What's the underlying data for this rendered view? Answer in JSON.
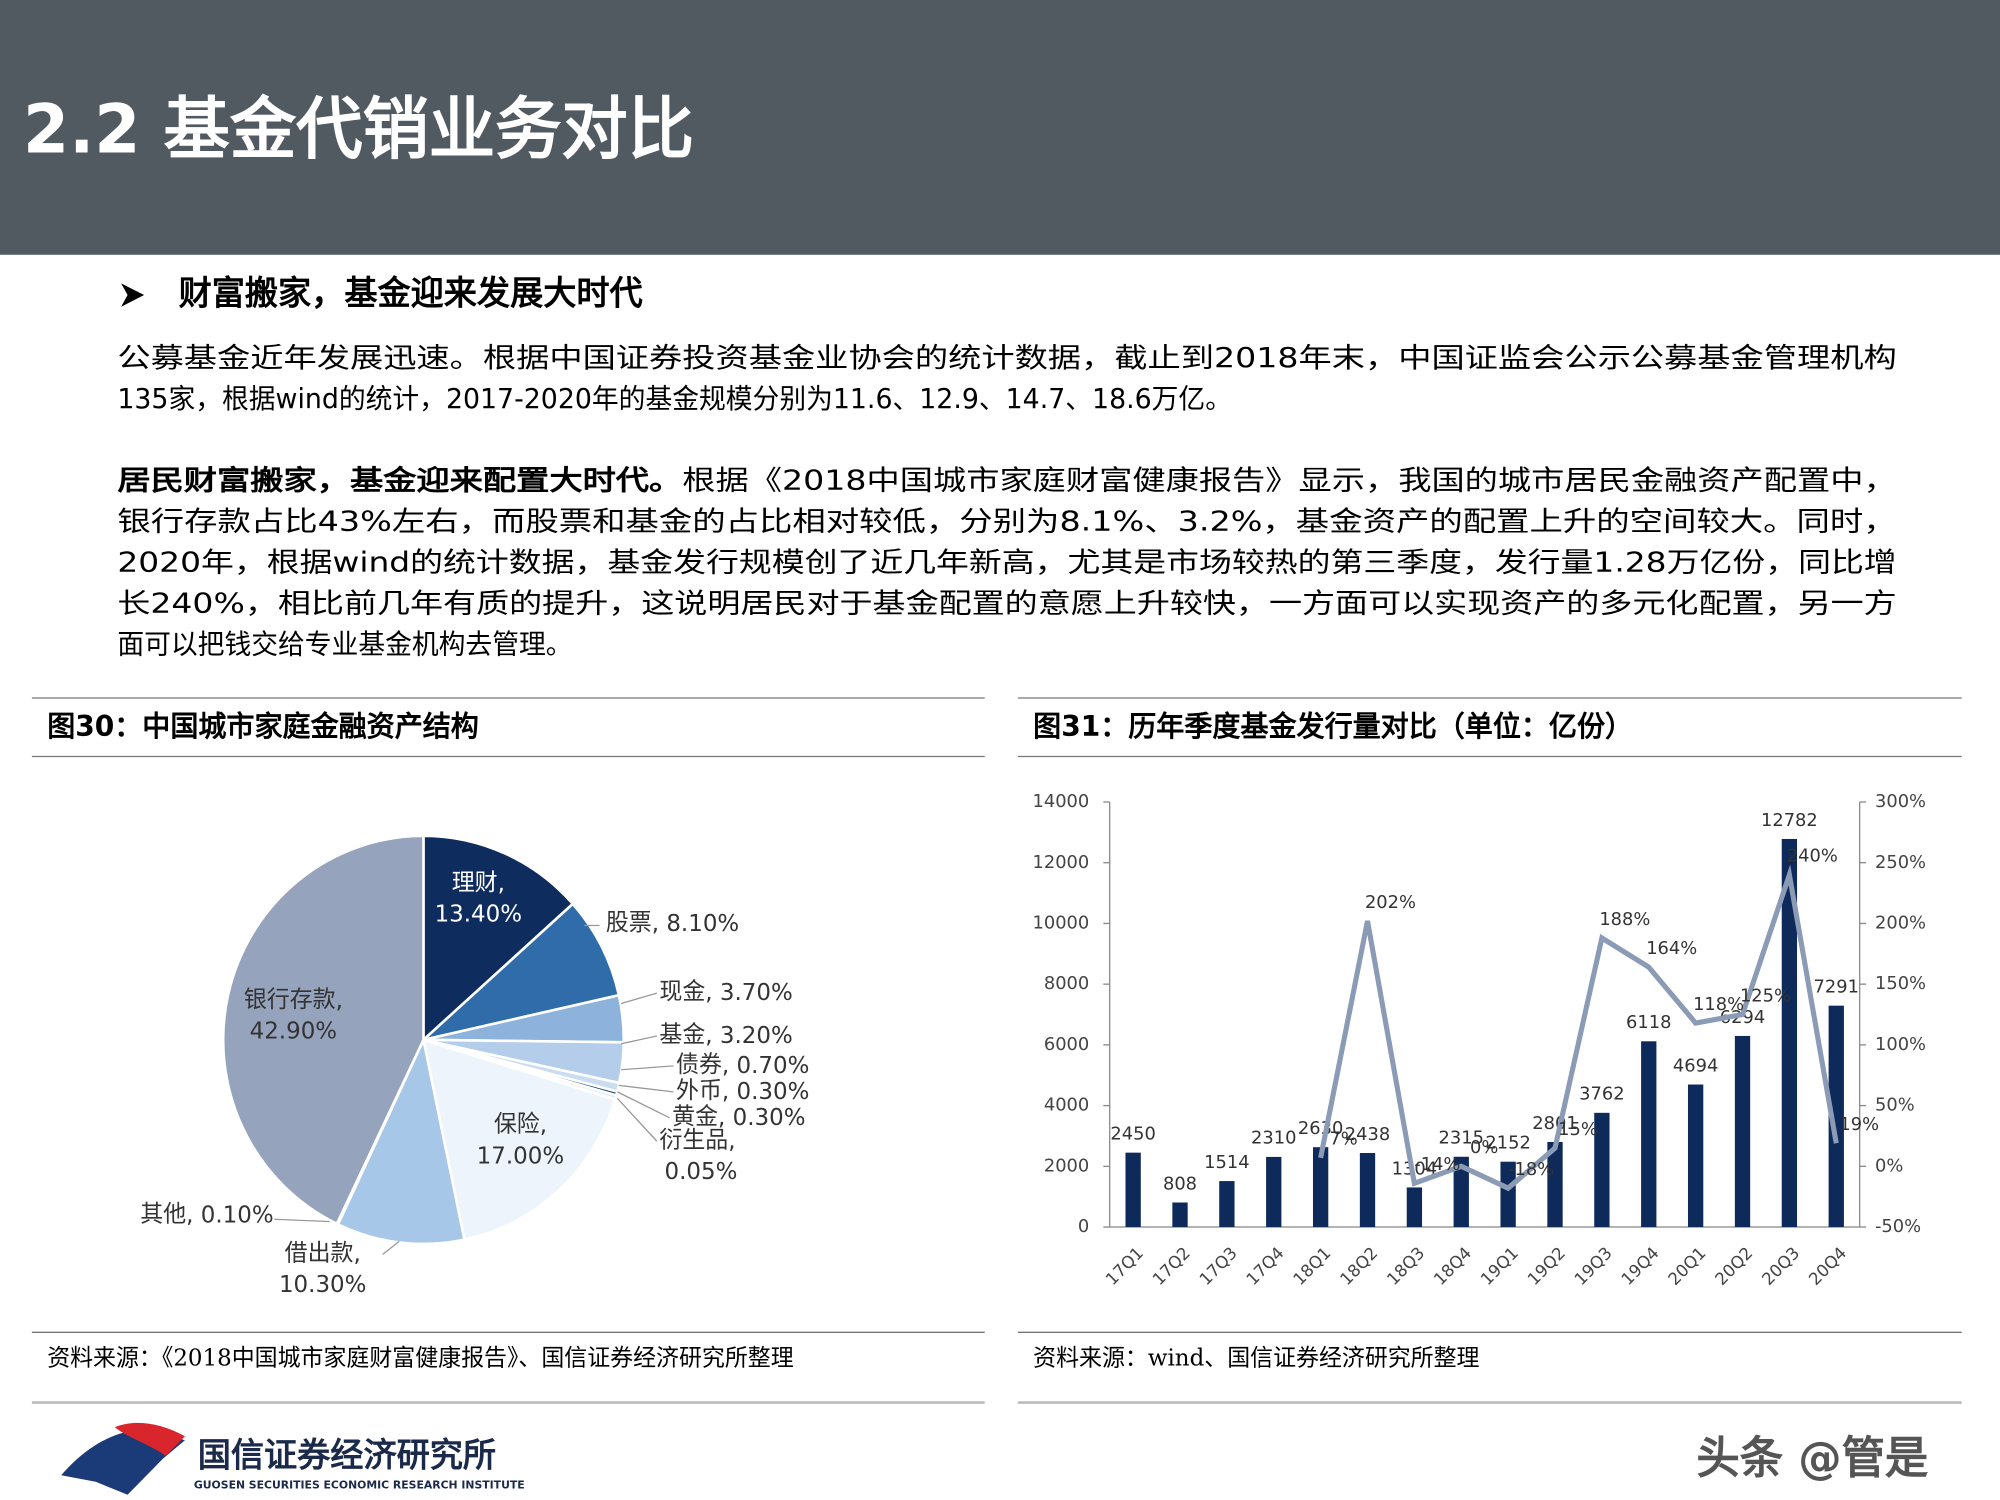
{
  "header": {
    "title": "2.2 基金代销业务对比"
  },
  "section": {
    "heading": "财富搬家，基金迎来发展大时代"
  },
  "paragraphs": [
    {
      "lines": [
        "公募基金近年发展迅速。根据中国证券投资基金业协会的统计数据，截止到2018年末，中国证监会公示公募基金管理机构",
        "135家，根据wind的统计，2017-2020年的基金规模分别为11.6、12.9、14.7、18.6万亿。"
      ]
    },
    {
      "lead": "居民财富搬家，基金迎来配置大时代。",
      "lines": [
        "根据《2018中国城市家庭财富健康报告》显示，我国的城市居民金融资产配置中，",
        "银行存款占比43%左右，而股票和基金的占比相对较低，分别为8.1%、3.2%，基金资产的配置上升的空间较大。同时，",
        "2020年，根据wind的统计数据，基金发行规模创了近几年新高，尤其是市场较热的第三季度，发行量1.28万亿份，同比增",
        "长240%，相比前几年有质的提升，这说明居民对于基金配置的意愿上升较快，一方面可以实现资产的多元化配置，另一方",
        "面可以把钱交给专业基金机构去管理。"
      ]
    }
  ],
  "chart_data": [
    {
      "type": "pie",
      "title": "图30：中国城市家庭金融资产结构",
      "source": "资料来源：《2018中国城市家庭财富健康报告》、国信证券经济研究所整理",
      "categories": [
        "理财",
        "股票",
        "现金",
        "基金",
        "债券",
        "外币",
        "黄金",
        "衍生品",
        "保险",
        "借出款",
        "其他",
        "银行存款"
      ],
      "values": [
        13.4,
        8.1,
        3.7,
        3.2,
        0.7,
        0.3,
        0.3,
        0.05,
        17.0,
        10.3,
        0.1,
        42.9
      ],
      "value_labels": [
        "13.40%",
        "8.10%",
        "3.70%",
        "3.20%",
        "0.70%",
        "0.30%",
        "0.30%",
        "0.05%",
        "17.00%",
        "10.30%",
        "0.10%",
        "42.90%"
      ],
      "label_separator": ",",
      "colors": [
        "#0e2d5e",
        "#2f6ca9",
        "#8db3dd",
        "#b3cdea",
        "#c9dcf0",
        "#1d4a80",
        "#dbe7f5",
        "#e6eef8",
        "#eef4fb",
        "#a7c7e8",
        "#c8d2e0",
        "#95a3bc"
      ]
    },
    {
      "type": "bar-line",
      "title": "图31：历年季度基金发行量对比（单位：亿份）",
      "source": "资料来源：wind、国信证券经济研究所整理",
      "categories": [
        "17Q1",
        "17Q2",
        "17Q3",
        "17Q4",
        "18Q1",
        "18Q2",
        "18Q3",
        "18Q4",
        "19Q1",
        "19Q2",
        "19Q3",
        "19Q4",
        "20Q1",
        "20Q2",
        "20Q3",
        "20Q4"
      ],
      "series": [
        {
          "type": "bar",
          "color": "#0d2a5a",
          "values": [
            2450,
            808,
            1514,
            2310,
            2630,
            2438,
            1304,
            2315,
            2152,
            2801,
            3762,
            6118,
            4694,
            6294,
            12782,
            7291
          ]
        },
        {
          "type": "line",
          "axis": "y2",
          "color": "#8c9bb5",
          "values": [
            null,
            null,
            null,
            null,
            7,
            202,
            -14,
            0,
            -18,
            15,
            188,
            164,
            118,
            125,
            240,
            19
          ],
          "value_labels": [
            null,
            null,
            null,
            null,
            "7%",
            "202%",
            "-14%",
            "0%",
            "-18%",
            "15%",
            "188%",
            "164%",
            "118%",
            "125%",
            "240%",
            "19%"
          ]
        }
      ],
      "ylim": [
        0,
        14000
      ],
      "yticks": [
        0,
        2000,
        4000,
        6000,
        8000,
        10000,
        12000,
        14000
      ],
      "y2lim": [
        -50,
        300
      ],
      "y2ticks": [
        {
          "value": -50,
          "label": "-50%"
        },
        {
          "value": 0,
          "label": "0%"
        },
        {
          "value": 50,
          "label": "50%"
        },
        {
          "value": 100,
          "label": "100%"
        },
        {
          "value": 150,
          "label": "150%"
        },
        {
          "value": 200,
          "label": "200%"
        },
        {
          "value": 250,
          "label": "250%"
        },
        {
          "value": 300,
          "label": "300%"
        }
      ]
    }
  ],
  "footer": {
    "org": "国信证券经济研究所",
    "org_en": "GUOSEN SECURITIES ECONOMIC RESEARCH INSTITUTE",
    "watermark": "头条 @管是"
  }
}
